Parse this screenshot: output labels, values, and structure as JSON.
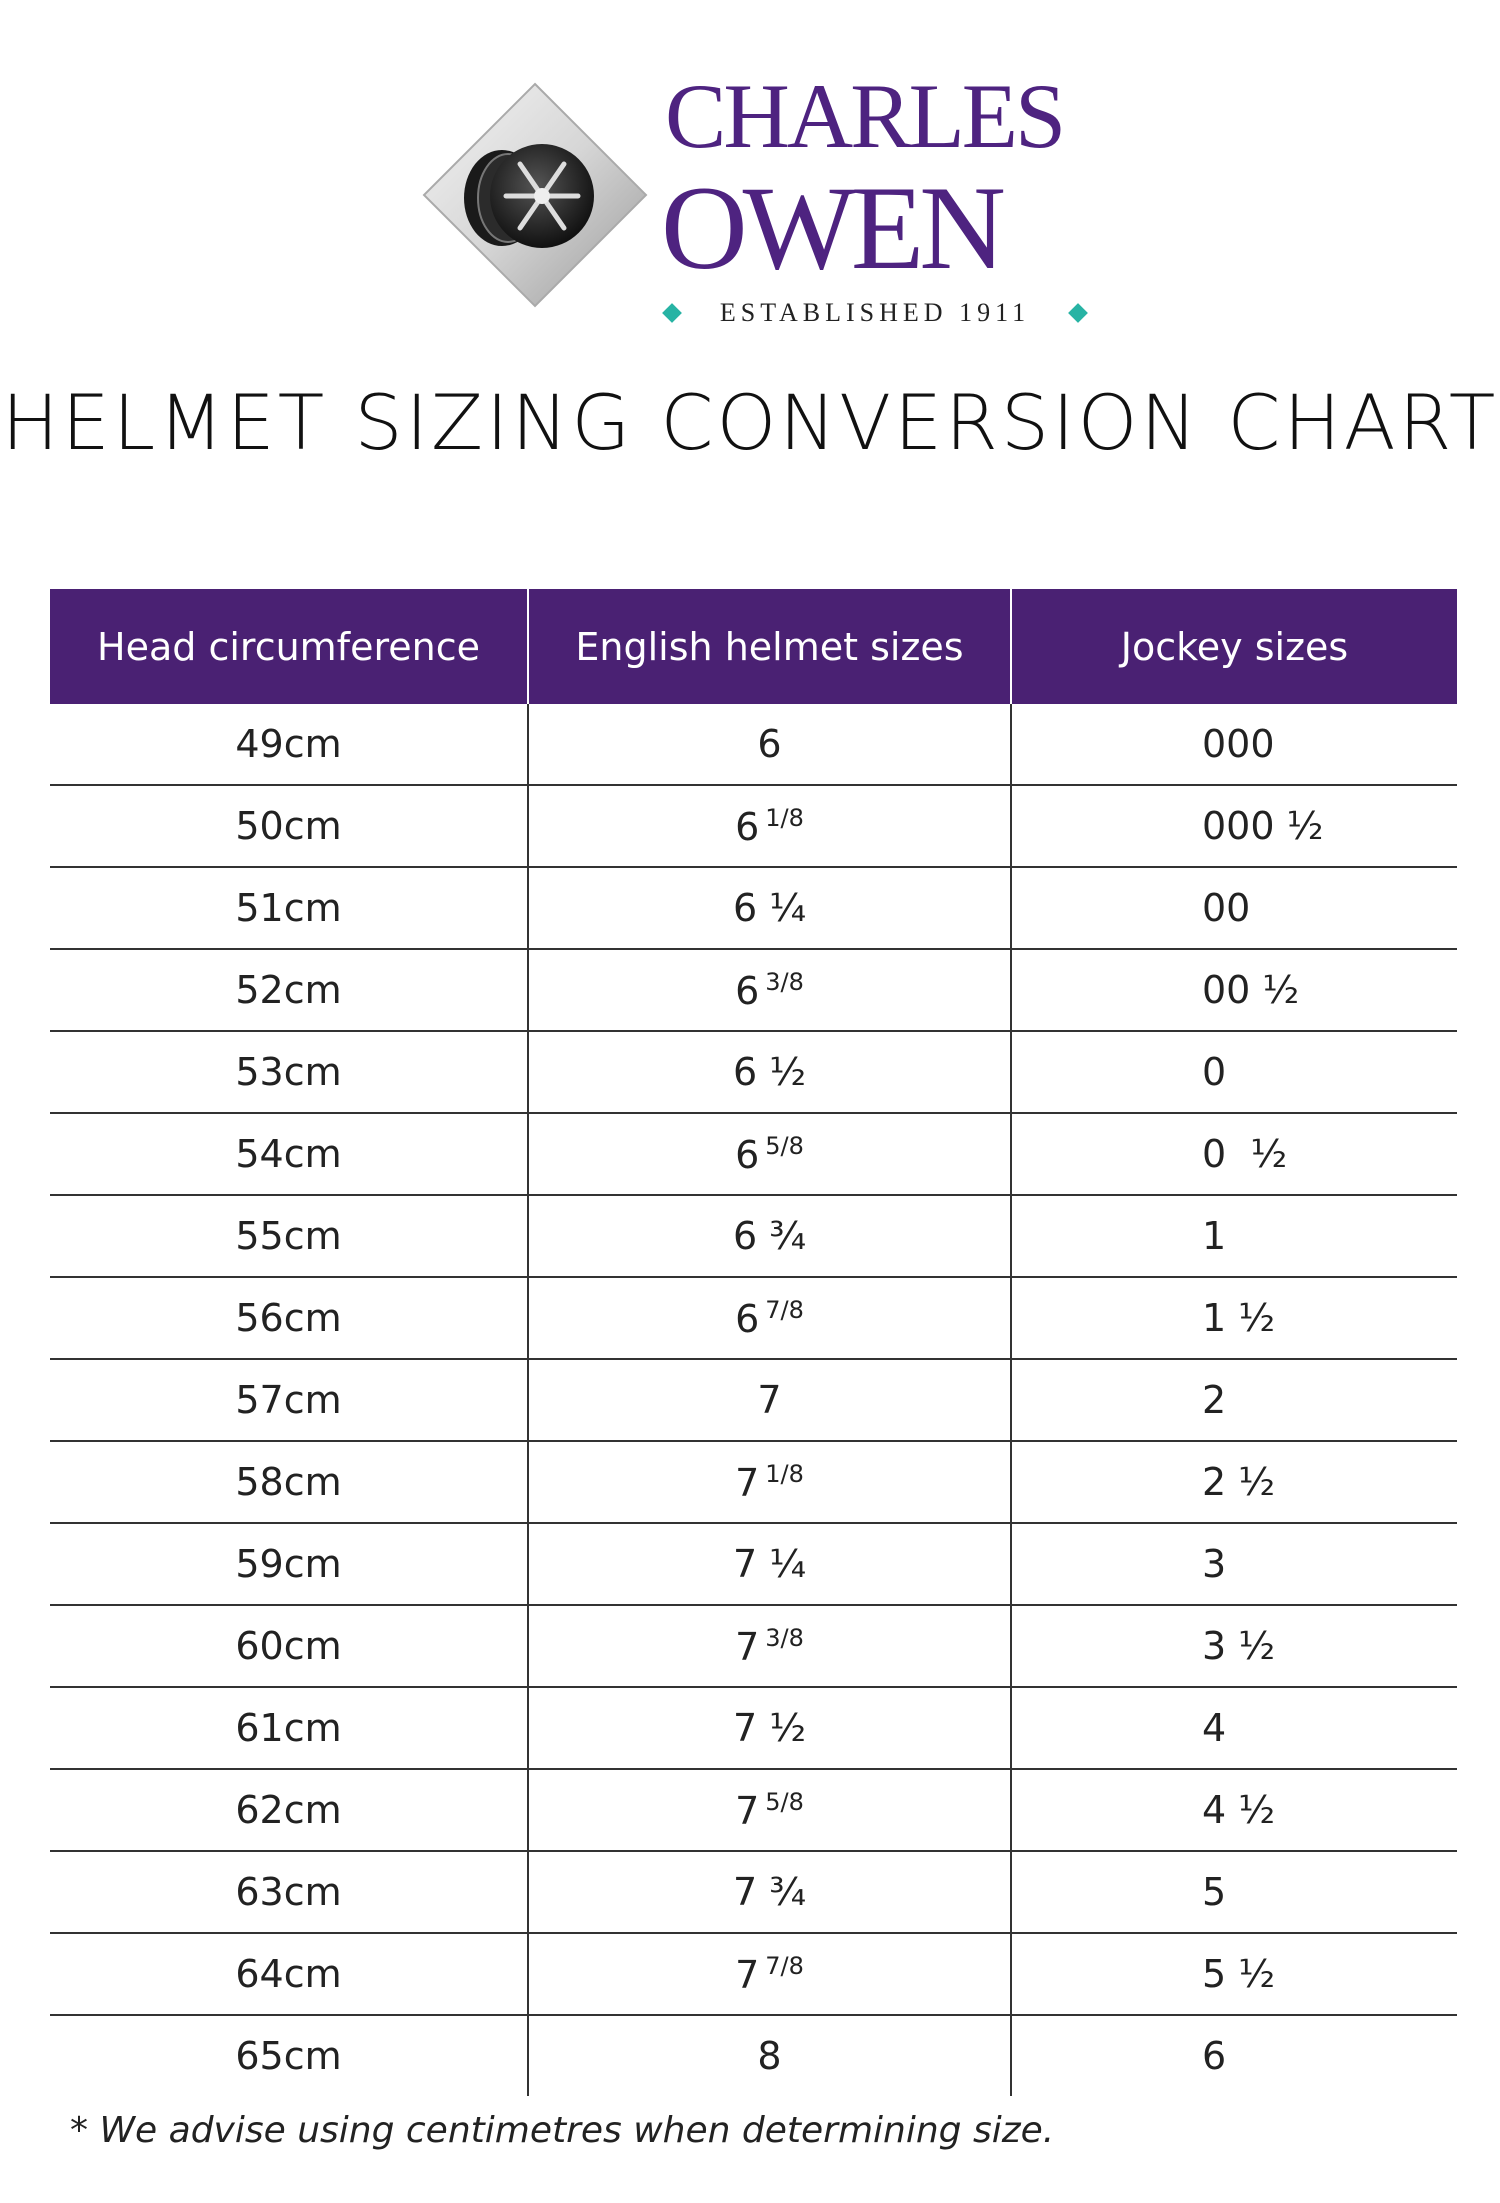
{
  "logo": {
    "line1": "CHARLES",
    "line2": "OWEN",
    "tagline": "ESTABLISHED 1911",
    "brand_color": "#4e2380",
    "accent_color": "#27b3a4"
  },
  "title": "HELMET SIZING CONVERSION CHART",
  "table": {
    "header_color": "#4a2173",
    "headers": [
      "Head circumference",
      "English helmet sizes",
      "Jockey sizes"
    ],
    "rows": [
      {
        "cm": "49cm",
        "eng": "6",
        "eng_frac": "",
        "jockey": "000"
      },
      {
        "cm": "50cm",
        "eng": "6",
        "eng_frac": "1/8",
        "jockey": "000 ½"
      },
      {
        "cm": "51cm",
        "eng": "6 ¼",
        "eng_frac": "",
        "jockey": "00"
      },
      {
        "cm": "52cm",
        "eng": "6",
        "eng_frac": "3/8",
        "jockey": "00 ½"
      },
      {
        "cm": "53cm",
        "eng": "6 ½",
        "eng_frac": "",
        "jockey": "0"
      },
      {
        "cm": "54cm",
        "eng": "6",
        "eng_frac": "5/8",
        "jockey": "0  ½"
      },
      {
        "cm": "55cm",
        "eng": "6 ¾",
        "eng_frac": "",
        "jockey": "1"
      },
      {
        "cm": "56cm",
        "eng": "6",
        "eng_frac": "7/8",
        "jockey": "1 ½"
      },
      {
        "cm": "57cm",
        "eng": "7",
        "eng_frac": "",
        "jockey": "2"
      },
      {
        "cm": "58cm",
        "eng": "7",
        "eng_frac": "1/8",
        "jockey": "2 ½"
      },
      {
        "cm": "59cm",
        "eng": "7 ¼",
        "eng_frac": "",
        "jockey": "3"
      },
      {
        "cm": "60cm",
        "eng": "7",
        "eng_frac": "3/8",
        "jockey": "3 ½"
      },
      {
        "cm": "61cm",
        "eng": "7 ½",
        "eng_frac": "",
        "jockey": "4"
      },
      {
        "cm": "62cm",
        "eng": "7",
        "eng_frac": "5/8",
        "jockey": "4 ½"
      },
      {
        "cm": "63cm",
        "eng": "7 ¾",
        "eng_frac": "",
        "jockey": "5"
      },
      {
        "cm": "64cm",
        "eng": "7",
        "eng_frac": "7/8",
        "jockey": "5 ½"
      },
      {
        "cm": "65cm",
        "eng": "8",
        "eng_frac": "",
        "jockey": "6"
      }
    ]
  },
  "footnote": "* We advise using centimetres when determining size."
}
